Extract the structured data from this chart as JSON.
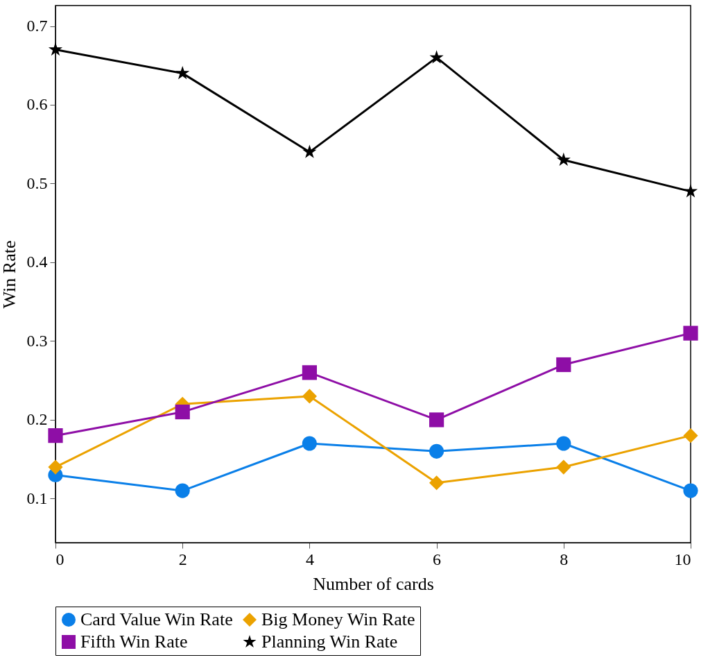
{
  "chart_data": {
    "type": "line",
    "xlabel": "Number of cards",
    "ylabel": "Win Rate",
    "x": [
      0,
      2,
      4,
      6,
      8,
      10
    ],
    "series": [
      {
        "name": "Card Value Win Rate",
        "color": "#0a7fe8",
        "marker": "circle",
        "values": [
          0.13,
          0.11,
          0.17,
          0.16,
          0.17,
          0.11
        ]
      },
      {
        "name": "Big Money Win Rate",
        "color": "#eba200",
        "marker": "diamond",
        "values": [
          0.14,
          0.22,
          0.23,
          0.12,
          0.14,
          0.18
        ]
      },
      {
        "name": "Fifth Win Rate",
        "color": "#8e0ea6",
        "marker": "square",
        "values": [
          0.18,
          0.21,
          0.26,
          0.2,
          0.27,
          0.31
        ]
      },
      {
        "name": "Planning Win Rate",
        "color": "#000000",
        "marker": "star",
        "values": [
          0.67,
          0.64,
          0.54,
          0.66,
          0.53,
          0.49
        ]
      }
    ],
    "xlim": [
      0,
      10
    ],
    "xticks": [
      0,
      2,
      4,
      6,
      8,
      10
    ],
    "ylim": [
      0.044,
      0.726
    ],
    "yticks": [
      0.1,
      0.2,
      0.3,
      0.4,
      0.5,
      0.6,
      0.7
    ],
    "grid": false,
    "legend": "bottom",
    "line_style": "solid"
  }
}
